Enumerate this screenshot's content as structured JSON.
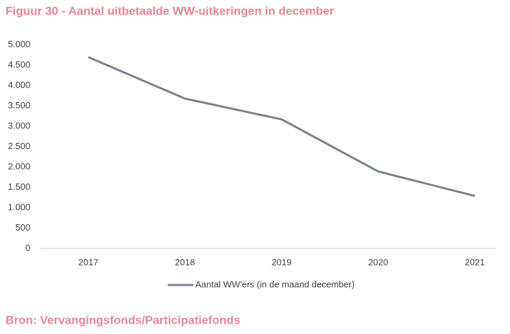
{
  "chart_data": {
    "type": "line",
    "title": "Figuur 30 - Aantal uitbetaalde WW-uitkeringen in december",
    "categories": [
      "2017",
      "2018",
      "2019",
      "2020",
      "2021"
    ],
    "series": [
      {
        "name": "Aantal WW'ers (in de maand december)",
        "color": "#76808c",
        "values": [
          4700,
          3680,
          3170,
          1890,
          1290
        ]
      }
    ],
    "ylim": [
      0,
      5000
    ],
    "yticks": [
      0,
      500,
      {
        "value": 1000,
        "label": "1.000"
      },
      {
        "value": 1500,
        "label": "1.500"
      },
      {
        "value": 2000,
        "label": "2.000"
      },
      {
        "value": 2500,
        "label": "2.500"
      },
      {
        "value": 3000,
        "label": "3.000"
      },
      {
        "value": 3500,
        "label": "3.500"
      },
      {
        "value": 4000,
        "label": "4.000"
      },
      {
        "value": 4500,
        "label": "4.500"
      },
      {
        "value": 5000,
        "label": "5.000"
      }
    ],
    "grid": false,
    "legend": "bottom",
    "source": "Bron: Vervangingsfonds/Participatiefonds"
  }
}
